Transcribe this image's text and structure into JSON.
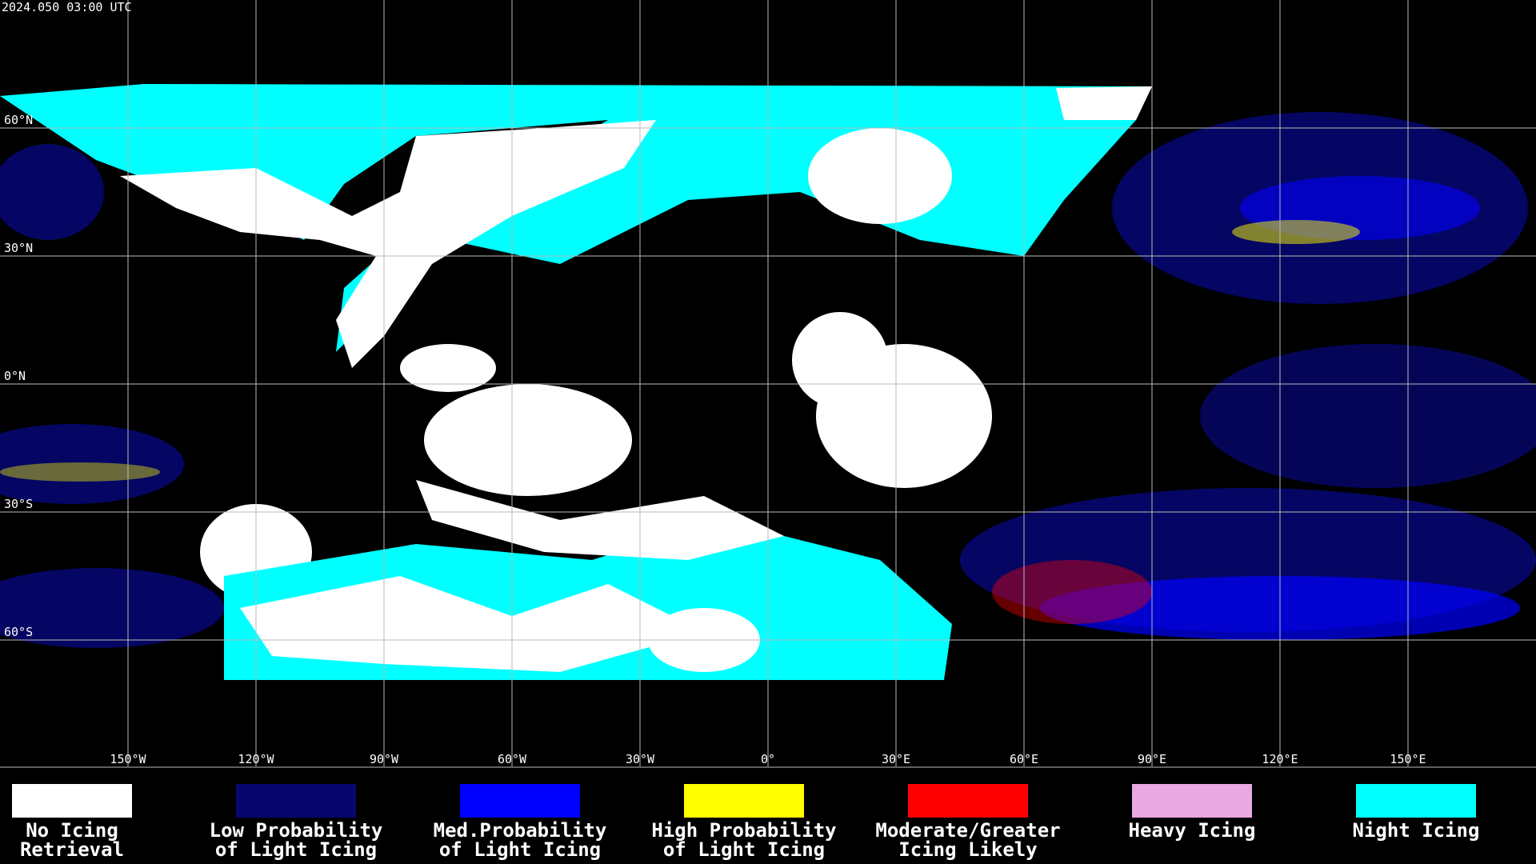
{
  "header": {
    "title": "2024.050 03:00 UTC"
  },
  "map": {
    "lat_labels": [
      "60°N",
      "30°N",
      "0°N",
      "30°S",
      "60°S"
    ],
    "lon_labels": [
      "150°W",
      "120°W",
      "90°W",
      "60°W",
      "30°W",
      "0°",
      "30°E",
      "60°E",
      "90°E",
      "120°E",
      "150°E"
    ]
  },
  "legend": {
    "items": [
      {
        "color": "#ffffff",
        "lines": [
          "No Icing",
          "Retrieval"
        ]
      },
      {
        "color": "#06066e",
        "lines": [
          "Low Probability",
          "of Light Icing"
        ]
      },
      {
        "color": "#0000ff",
        "lines": [
          "Med.Probability",
          "of Light Icing"
        ]
      },
      {
        "color": "#ffff00",
        "lines": [
          "High Probability",
          "of Light Icing"
        ]
      },
      {
        "color": "#ff0000",
        "lines": [
          "Moderate/Greater",
          "Icing Likely"
        ]
      },
      {
        "color": "#e8a8e0",
        "lines": [
          "Heavy Icing"
        ]
      },
      {
        "color": "#00ffff",
        "lines": [
          "Night Icing"
        ]
      }
    ]
  }
}
